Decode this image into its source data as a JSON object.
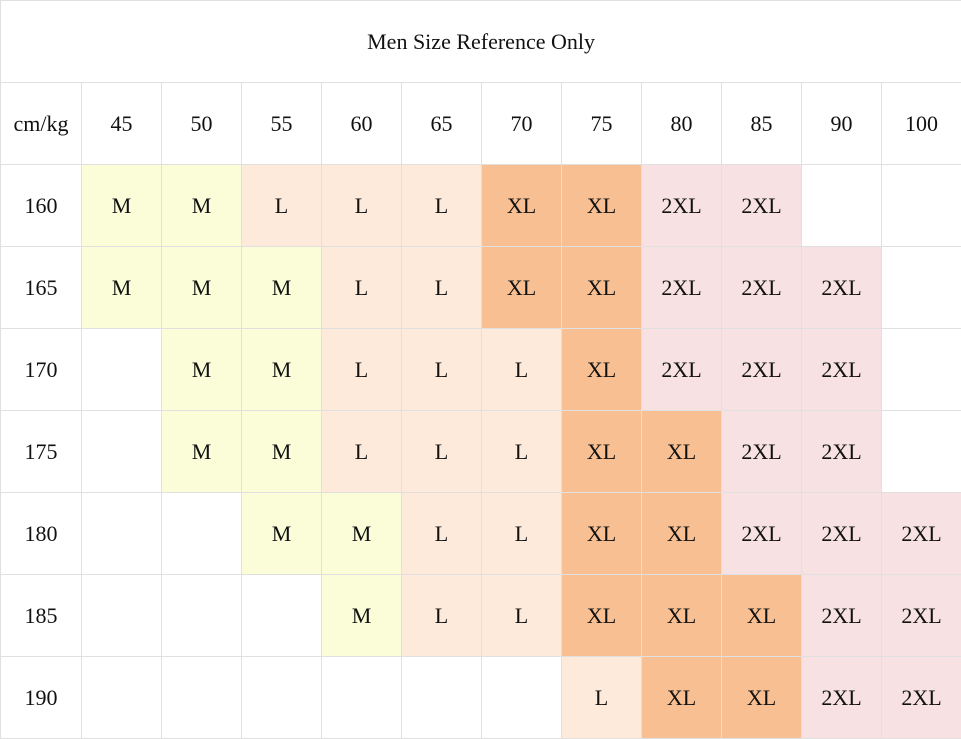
{
  "title": "Men Size Reference Only",
  "corner_label": "cm/kg",
  "weights": [
    "45",
    "50",
    "55",
    "60",
    "65",
    "70",
    "75",
    "80",
    "85",
    "90",
    "100"
  ],
  "rows": [
    {
      "height": "160",
      "sizes": [
        "M",
        "M",
        "L",
        "L",
        "L",
        "XL",
        "XL",
        "2XL",
        "2XL",
        "",
        ""
      ]
    },
    {
      "height": "165",
      "sizes": [
        "M",
        "M",
        "M",
        "L",
        "L",
        "XL",
        "XL",
        "2XL",
        "2XL",
        "2XL",
        ""
      ]
    },
    {
      "height": "170",
      "sizes": [
        "",
        "M",
        "M",
        "L",
        "L",
        "L",
        "XL",
        "2XL",
        "2XL",
        "2XL",
        ""
      ]
    },
    {
      "height": "175",
      "sizes": [
        "",
        "M",
        "M",
        "L",
        "L",
        "L",
        "XL",
        "XL",
        "2XL",
        "2XL",
        ""
      ]
    },
    {
      "height": "180",
      "sizes": [
        "",
        "",
        "M",
        "M",
        "L",
        "L",
        "XL",
        "XL",
        "2XL",
        "2XL",
        "2XL"
      ]
    },
    {
      "height": "185",
      "sizes": [
        "",
        "",
        "",
        "M",
        "L",
        "L",
        "XL",
        "XL",
        "XL",
        "2XL",
        "2XL"
      ]
    },
    {
      "height": "190",
      "sizes": [
        "",
        "",
        "",
        "",
        "",
        "",
        "L",
        "XL",
        "XL",
        "2XL",
        "2XL"
      ]
    }
  ],
  "size_colors": {
    "M": "#fafdd8",
    "L": "#fdeadb",
    "XL": "#f8bf92",
    "2XL": "#f7e1e2"
  }
}
